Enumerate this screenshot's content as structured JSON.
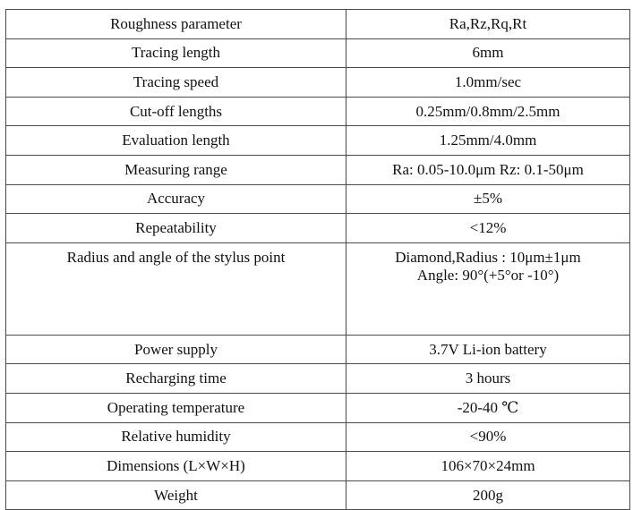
{
  "table": {
    "rows": [
      {
        "parameter": "Roughness parameter",
        "value": "Ra,Rz,Rq,Rt"
      },
      {
        "parameter": "Tracing length",
        "value": "6mm"
      },
      {
        "parameter": "Tracing speed",
        "value": "1.0mm/sec"
      },
      {
        "parameter": "Cut-off lengths",
        "value": "0.25mm/0.8mm/2.5mm"
      },
      {
        "parameter": "Evaluation length",
        "value": "1.25mm/4.0mm"
      },
      {
        "parameter": "Measuring range",
        "value": "Ra: 0.05-10.0μm Rz: 0.1-50μm"
      },
      {
        "parameter": "Accuracy",
        "value": "±5%"
      },
      {
        "parameter": "Repeatability",
        "value": "<12%"
      },
      {
        "parameter": "Radius and angle of the stylus point",
        "value_line1": "Diamond,Radius : 10μm±1μm",
        "value_line2": "Angle: 90°(+5°or -10°)"
      },
      {
        "parameter": "Power supply",
        "value": "3.7V Li-ion battery"
      },
      {
        "parameter": "Recharging time",
        "value": "3 hours"
      },
      {
        "parameter": "Operating temperature",
        "value": "-20-40 ℃"
      },
      {
        "parameter": "Relative humidity",
        "value": "<90%"
      },
      {
        "parameter": "Dimensions (L×W×H)",
        "value": "106×70×24mm"
      },
      {
        "parameter": "Weight",
        "value": "200g"
      }
    ]
  }
}
